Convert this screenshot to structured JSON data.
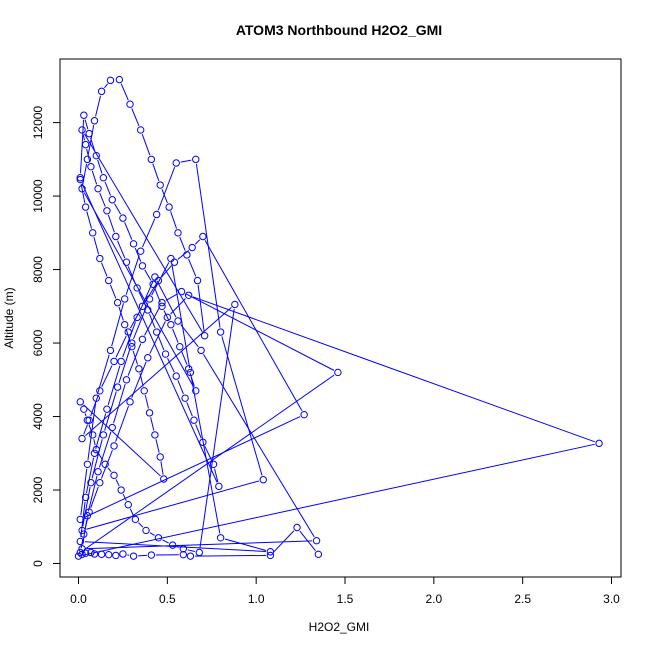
{
  "chart_data": {
    "type": "line",
    "title": "ATOM3 Northbound H2O2_GMI",
    "xlabel": "H2O2_GMI",
    "ylabel": "Altitude (m)",
    "xlim": [
      0,
      3.0
    ],
    "ylim": [
      0,
      13000
    ],
    "xticks": [
      0.0,
      0.5,
      1.0,
      1.5,
      2.0,
      2.5,
      3.0
    ],
    "xtick_labels": [
      "0.0",
      "0.5",
      "1.0",
      "1.5",
      "2.0",
      "2.5",
      "3.0"
    ],
    "yticks": [
      0,
      2000,
      4000,
      6000,
      8000,
      10000,
      12000
    ],
    "ytick_labels": [
      "0",
      "2000",
      "4000",
      "6000",
      "8000",
      "10000",
      "12000"
    ],
    "grid": false,
    "marker": "open-circle",
    "color": "#0000ff",
    "series": [
      {
        "x": [
          0.01,
          0.03,
          0.06,
          0.1,
          0.14,
          0.19,
          0.25,
          0.31,
          0.36,
          0.42,
          0.47,
          0.52,
          0.57,
          0.62,
          0.66,
          0.02,
          0.05,
          0.09,
          0.13,
          0.18,
          0.23,
          0.29,
          0.35,
          0.41,
          0.46,
          0.51,
          0.56,
          0.61,
          0.67,
          0.71,
          0.02,
          0.04,
          0.07,
          0.11,
          0.16,
          0.21,
          0.27,
          0.33,
          0.39,
          0.44,
          0.49,
          0.55,
          0.6,
          0.65,
          0.7,
          0.76,
          0.79,
          0.01,
          0.04,
          0.08,
          0.12,
          0.17,
          0.22,
          0.26,
          0.3,
          0.34,
          0.37,
          0.4,
          0.43,
          0.46,
          0.48,
          0.01,
          0.03,
          0.05,
          0.08,
          0.1,
          0.15,
          0.2,
          0.24,
          0.28,
          0.32,
          0.38,
          0.45,
          0.53,
          0.59,
          0.68,
          0.88,
          0.02,
          0.06,
          0.12,
          0.2,
          0.28,
          0.36,
          0.45,
          0.54,
          0.64,
          0.7,
          1.27,
          0.01,
          0.05,
          0.1,
          0.18,
          0.26,
          0.35,
          0.44,
          0.55,
          0.66,
          0.8,
          1.04,
          0.02,
          0.07,
          0.14,
          0.22,
          0.3,
          0.4,
          0.52,
          0.63,
          0.8,
          1.08,
          0.01,
          0.04,
          0.09,
          0.16,
          0.24,
          0.33,
          0.43,
          0.56,
          0.69,
          1.34,
          0.02,
          0.05,
          0.11,
          0.19,
          0.27,
          0.36,
          0.47,
          0.58,
          1.46,
          0.01,
          0.03,
          0.06,
          0.12,
          0.2,
          0.29,
          0.39,
          0.5,
          0.62,
          2.93,
          0.0,
          0.02,
          0.04,
          0.07,
          0.09,
          0.13,
          0.17,
          0.21,
          0.25,
          0.31,
          0.41,
          0.59,
          0.63,
          1.08,
          1.23,
          1.35
        ],
        "y": [
          10500,
          12200,
          11700,
          11100,
          10500,
          9900,
          9400,
          8700,
          8100,
          7600,
          7000,
          6500,
          5900,
          5300,
          4700,
          10200,
          11000,
          12050,
          12850,
          13150,
          13170,
          12500,
          11800,
          11000,
          10300,
          9700,
          9000,
          8400,
          7700,
          6200,
          11800,
          11400,
          10800,
          10200,
          9600,
          8900,
          8200,
          7500,
          6900,
          6300,
          5700,
          5100,
          4500,
          3900,
          3300,
          2700,
          2100,
          10450,
          9700,
          9000,
          8300,
          7700,
          7100,
          6500,
          5900,
          5300,
          4700,
          4100,
          3500,
          2900,
          2300,
          4400,
          4200,
          3900,
          3500,
          3100,
          2700,
          2400,
          2000,
          1600,
          1200,
          900,
          700,
          500,
          400,
          300,
          7050,
          3400,
          3900,
          4700,
          5500,
          6300,
          7000,
          7700,
          8200,
          8600,
          8900,
          4050,
          1200,
          2700,
          4500,
          5800,
          7200,
          8500,
          9500,
          10900,
          11000,
          6300,
          2280,
          900,
          2200,
          3500,
          4800,
          6000,
          7200,
          8300,
          5200,
          700,
          320,
          600,
          1800,
          3000,
          4200,
          5500,
          6700,
          7800,
          6600,
          5800,
          620,
          400,
          1300,
          2500,
          3700,
          5000,
          6100,
          7100,
          7400,
          5200,
          300,
          800,
          1400,
          2200,
          3200,
          4400,
          5600,
          6700,
          7300,
          3270,
          200,
          250,
          280,
          300,
          260,
          250,
          240,
          220,
          260,
          200,
          230,
          240,
          200,
          220,
          980,
          250
        ]
      }
    ]
  }
}
